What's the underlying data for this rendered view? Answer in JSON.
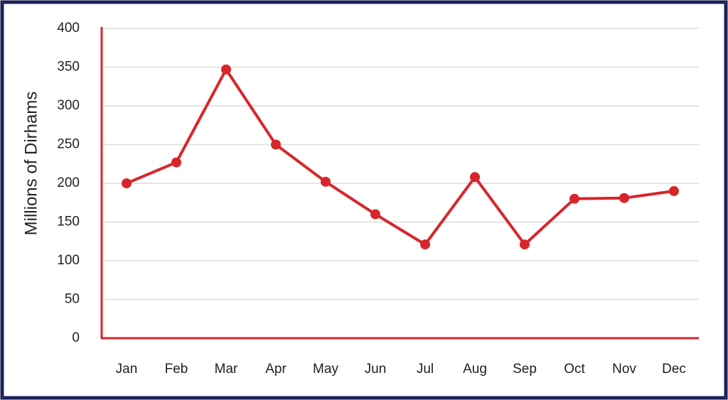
{
  "chart_data": {
    "type": "line",
    "ylabel": "Millions of Dirhams",
    "categories": [
      "Jan",
      "Feb",
      "Mar",
      "Apr",
      "May",
      "Jun",
      "Jul",
      "Aug",
      "Sep",
      "Oct",
      "Nov",
      "Dec"
    ],
    "values": [
      200,
      227,
      347,
      250,
      202,
      160,
      121,
      208,
      121,
      180,
      181,
      190
    ],
    "color": "#d7262b",
    "axis_color": "#d7262b",
    "ylim": [
      0,
      400
    ],
    "yticks": [
      0,
      50,
      100,
      150,
      200,
      250,
      300,
      350,
      400
    ],
    "grid": true
  }
}
